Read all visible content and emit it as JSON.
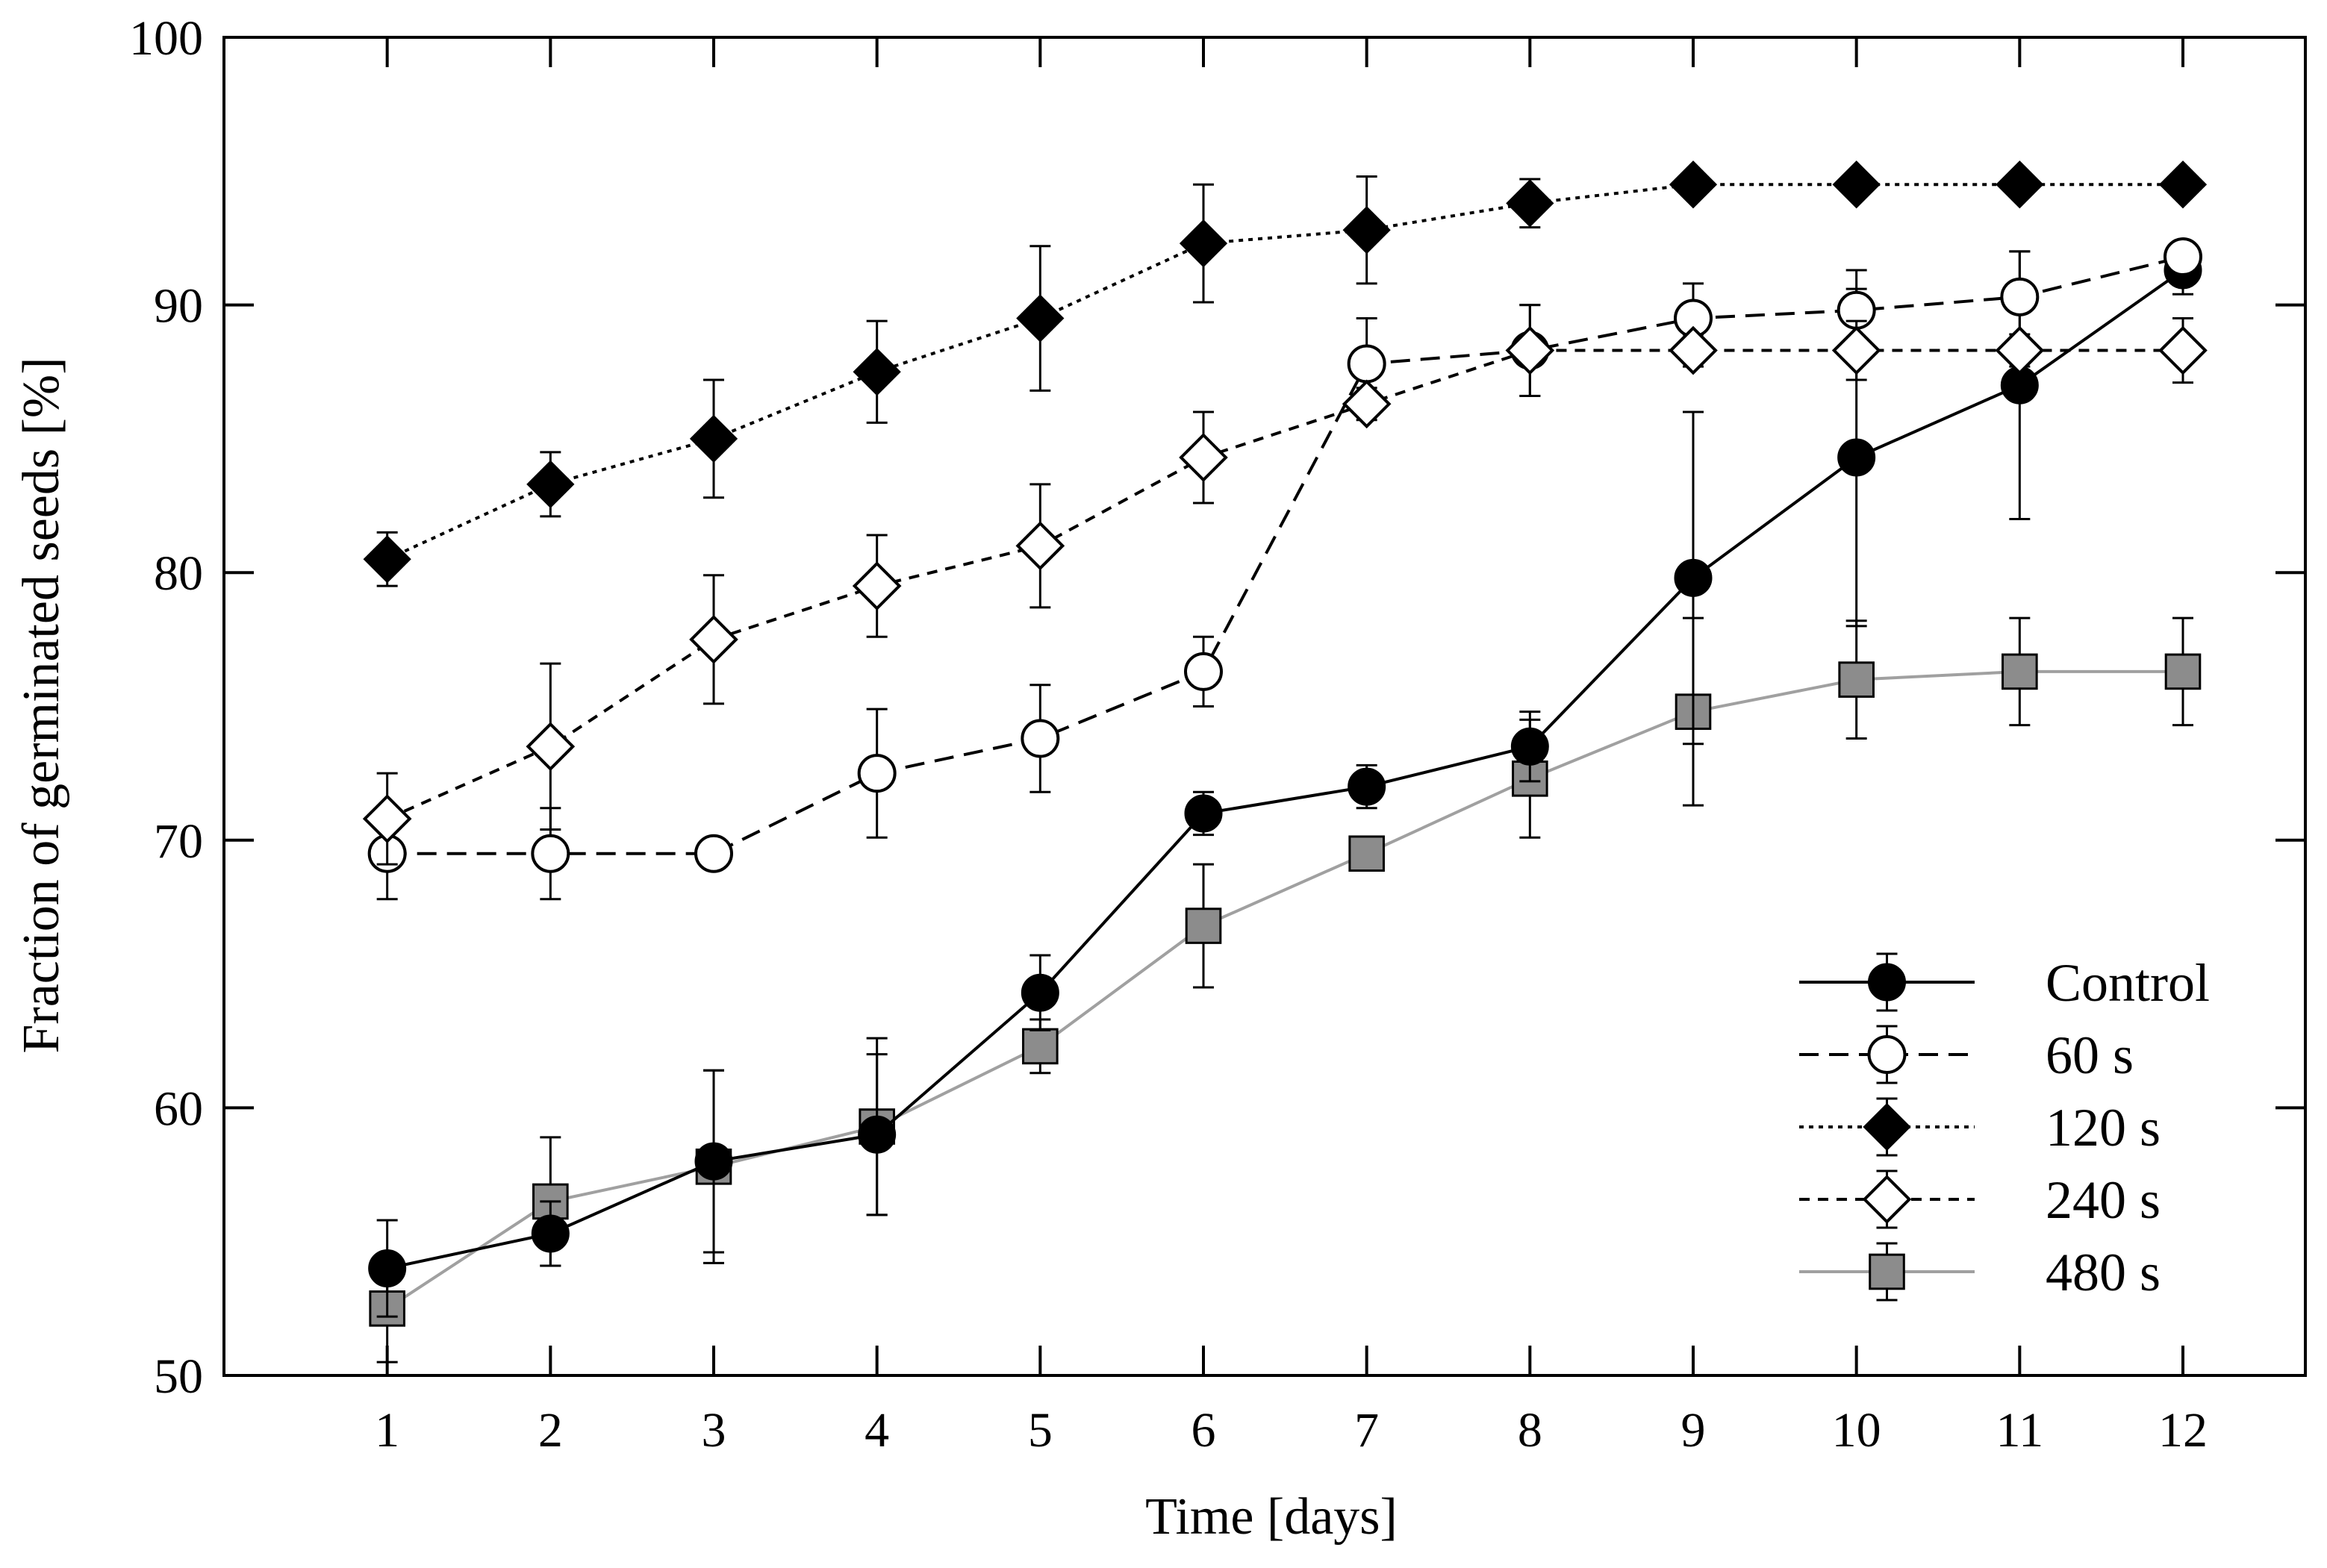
{
  "chart_data": {
    "type": "line",
    "title": "",
    "xlabel": "Time [days]",
    "ylabel": "Fraction of germinated seeds [%]",
    "xlim": [
      0,
      12.75
    ],
    "ylim": [
      50,
      100
    ],
    "x": [
      1,
      2,
      3,
      4,
      5,
      6,
      7,
      8,
      9,
      10,
      11,
      12
    ],
    "x_tick_labels": [
      "1",
      "2",
      "3",
      "4",
      "5",
      "6",
      "7",
      "8",
      "9",
      "10",
      "11",
      "12"
    ],
    "y_ticks": [
      50,
      60,
      70,
      80,
      90,
      100
    ],
    "y_tick_labels": [
      "50",
      "60",
      "70",
      "80",
      "90",
      "100"
    ],
    "grid": false,
    "legend_position": "bottom-right",
    "series": [
      {
        "name": "Control",
        "marker": "filled-circle",
        "line_style": "solid",
        "color": "#000000",
        "values": [
          54.0,
          55.3,
          58.0,
          59.0,
          64.3,
          71.0,
          72.0,
          73.5,
          79.8,
          84.3,
          87.0,
          91.3
        ],
        "errors": [
          1.8,
          1.2,
          3.4,
          3.0,
          1.4,
          0.8,
          0.8,
          1.3,
          6.2,
          6.3,
          5.0,
          0.9
        ]
      },
      {
        "name": "60 s",
        "marker": "open-circle",
        "line_style": "dashed",
        "color": "#000000",
        "values": [
          69.5,
          69.5,
          69.5,
          72.5,
          73.8,
          76.3,
          87.8,
          88.3,
          89.5,
          89.8,
          90.3,
          91.8
        ],
        "errors": [
          1.7,
          1.7,
          0.4,
          2.4,
          2.0,
          1.3,
          1.7,
          1.7,
          1.3,
          1.5,
          1.7,
          0.4
        ]
      },
      {
        "name": "120 s",
        "marker": "filled-diamond",
        "line_style": "dotted",
        "color": "#000000",
        "values": [
          80.5,
          83.3,
          85.0,
          87.5,
          89.5,
          92.3,
          92.8,
          93.8,
          94.5,
          94.5,
          94.5,
          94.5
        ],
        "errors": [
          1.0,
          1.2,
          2.2,
          1.9,
          2.7,
          2.2,
          2.0,
          0.9,
          0.0,
          0.0,
          0.0,
          0.0
        ]
      },
      {
        "name": "240 s",
        "marker": "open-diamond",
        "line_style": "short-dashed",
        "color": "#000000",
        "values": [
          70.8,
          73.5,
          77.5,
          79.5,
          81.0,
          84.3,
          86.3,
          88.3,
          88.3,
          88.3,
          88.3,
          88.3
        ],
        "errors": [
          1.7,
          3.1,
          2.4,
          1.9,
          2.3,
          1.7,
          0.6,
          1.7,
          0.6,
          1.1,
          0.6,
          1.2
        ]
      },
      {
        "name": "480 s",
        "marker": "filled-square",
        "line_style": "solid",
        "color": "#a0a0a0",
        "marker_color": "#8c8c8c",
        "values": [
          52.5,
          56.5,
          57.8,
          59.3,
          62.3,
          66.8,
          69.5,
          72.3,
          74.8,
          76.0,
          76.3,
          76.3
        ],
        "errors": [
          2.0,
          2.4,
          3.6,
          3.3,
          1.0,
          2.3,
          0.0,
          2.2,
          3.5,
          2.2,
          2.0,
          2.0
        ]
      }
    ]
  }
}
